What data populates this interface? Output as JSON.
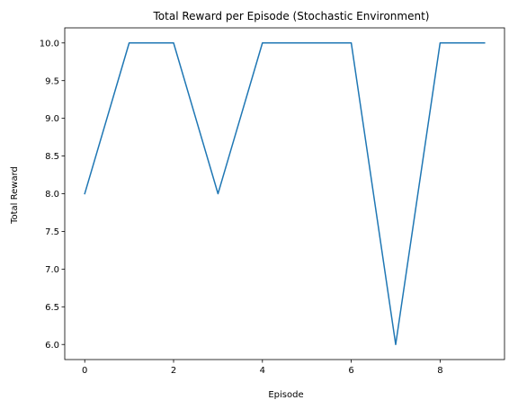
{
  "chart_data": {
    "type": "line",
    "title": "Total Reward per Episode (Stochastic Environment)",
    "xlabel": "Episode",
    "ylabel": "Total Reward",
    "x": [
      0,
      1,
      2,
      3,
      4,
      5,
      6,
      7,
      8,
      9
    ],
    "series": [
      {
        "values": [
          8.0,
          10.0,
          10.0,
          8.0,
          10.0,
          10.0,
          10.0,
          6.0,
          10.0,
          10.0
        ],
        "color": "#1f77b4"
      }
    ],
    "xlim": [
      -0.45,
      9.45
    ],
    "ylim": [
      5.8,
      10.2
    ],
    "xticks": [
      0,
      2,
      4,
      6,
      8
    ],
    "xtick_labels": [
      "0",
      "2",
      "4",
      "6",
      "8"
    ],
    "yticks": [
      6.0,
      6.5,
      7.0,
      7.5,
      8.0,
      8.5,
      9.0,
      9.5,
      10.0
    ],
    "ytick_labels": [
      "6.0",
      "6.5",
      "7.0",
      "7.5",
      "8.0",
      "8.5",
      "9.0",
      "9.5",
      "10.0"
    ],
    "grid": false,
    "legend": false
  }
}
